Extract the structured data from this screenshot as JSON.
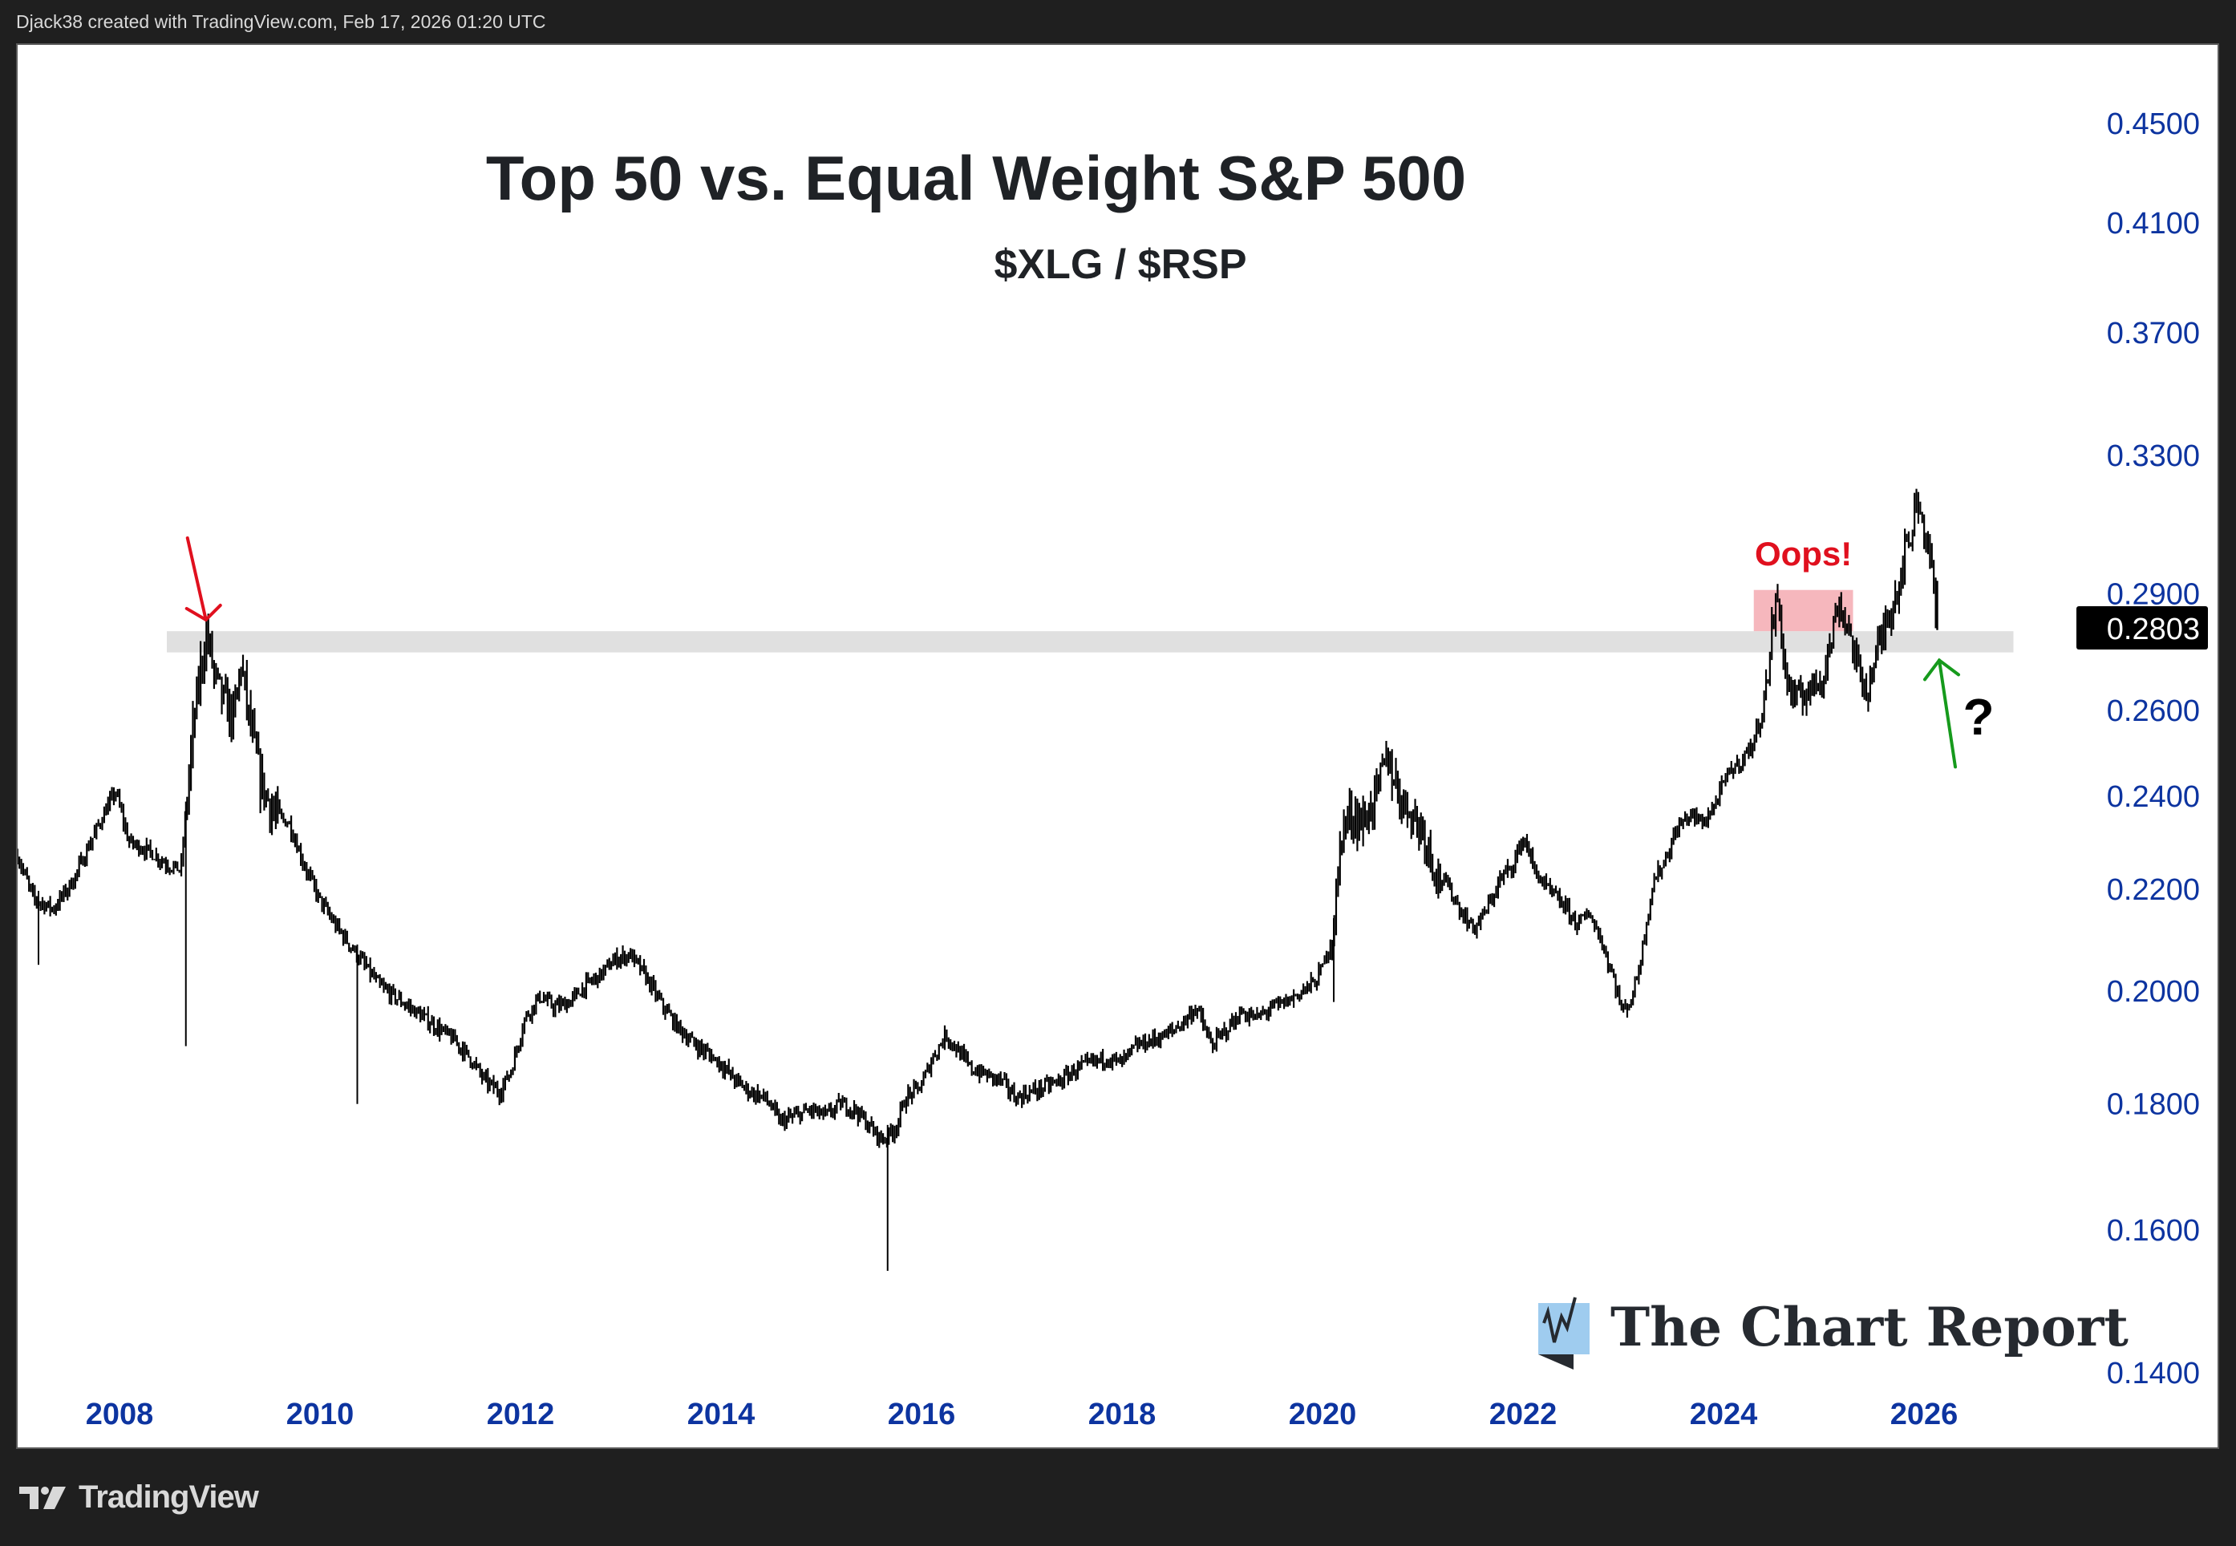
{
  "header": {
    "attribution": "Djack38 created with TradingView.com, Feb 17, 2026 01:20 UTC"
  },
  "footer": {
    "logo_icon": "tradingview-logo-icon",
    "logo_text": "TradingView"
  },
  "watermark": {
    "icon": "chart-report-logo-icon",
    "text": "The Chart Report"
  },
  "colors": {
    "axis_text": "#0d34a0",
    "price_bars": "#000000",
    "support_band": "#e0e0e0",
    "oops_box": "#f6b7bd",
    "oops_text": "#e0101e",
    "red_arrow": "#e0101e",
    "green_arrow": "#169a1c",
    "last_price_bg": "#000000",
    "last_price_text": "#ffffff"
  },
  "chart_data": {
    "type": "bar",
    "style": "ohlc-bars",
    "title": "Top 50 vs. Equal Weight S&P 500",
    "subtitle": "$XLG / $RSP",
    "xlabel": "",
    "ylabel": "",
    "yscale": "log",
    "ylim": [
      0.137,
      0.48
    ],
    "xlim": [
      2006.99,
      2027.0
    ],
    "grid": false,
    "legend": "none",
    "y_ticks": [
      "0.4500",
      "0.4100",
      "0.3700",
      "0.3300",
      "0.2900",
      "0.2600",
      "0.2400",
      "0.2200",
      "0.2000",
      "0.1800",
      "0.1600",
      "0.1400"
    ],
    "y_tick_values": [
      0.45,
      0.41,
      0.37,
      0.33,
      0.29,
      0.26,
      0.24,
      0.22,
      0.2,
      0.18,
      0.16,
      0.14
    ],
    "x_ticks": [
      "2008",
      "2010",
      "2012",
      "2014",
      "2016",
      "2018",
      "2020",
      "2022",
      "2024",
      "2026"
    ],
    "x_tick_values": [
      2008,
      2010,
      2012,
      2014,
      2016,
      2018,
      2020,
      2022,
      2024,
      2026
    ],
    "last_price": "0.2803",
    "last_price_value": 0.2803,
    "series": [
      {
        "name": "XLG/RSP",
        "points": [
          [
            2006.99,
            0.227
          ],
          [
            2007.15,
            0.218
          ],
          [
            2007.35,
            0.216
          ],
          [
            2007.55,
            0.222
          ],
          [
            2007.7,
            0.229
          ],
          [
            2007.85,
            0.236
          ],
          [
            2007.97,
            0.241
          ],
          [
            2008.1,
            0.23
          ],
          [
            2008.3,
            0.228
          ],
          [
            2008.5,
            0.225
          ],
          [
            2008.62,
            0.224
          ],
          [
            2008.74,
            0.255
          ],
          [
            2008.82,
            0.271
          ],
          [
            2008.88,
            0.2795
          ],
          [
            2008.96,
            0.268
          ],
          [
            2009.05,
            0.262
          ],
          [
            2009.15,
            0.258
          ],
          [
            2009.22,
            0.272
          ],
          [
            2009.3,
            0.258
          ],
          [
            2009.42,
            0.243
          ],
          [
            2009.55,
            0.236
          ],
          [
            2009.7,
            0.234
          ],
          [
            2009.85,
            0.225
          ],
          [
            2010.0,
            0.218
          ],
          [
            2010.15,
            0.213
          ],
          [
            2010.3,
            0.209
          ],
          [
            2010.45,
            0.205
          ],
          [
            2010.6,
            0.201
          ],
          [
            2010.75,
            0.199
          ],
          [
            2010.9,
            0.197
          ],
          [
            2011.05,
            0.195
          ],
          [
            2011.2,
            0.193
          ],
          [
            2011.35,
            0.191
          ],
          [
            2011.5,
            0.188
          ],
          [
            2011.65,
            0.184
          ],
          [
            2011.8,
            0.182
          ],
          [
            2011.92,
            0.186
          ],
          [
            2012.05,
            0.195
          ],
          [
            2012.2,
            0.199
          ],
          [
            2012.35,
            0.197
          ],
          [
            2012.5,
            0.198
          ],
          [
            2012.65,
            0.201
          ],
          [
            2012.8,
            0.203
          ],
          [
            2012.95,
            0.206
          ],
          [
            2013.1,
            0.207
          ],
          [
            2013.25,
            0.203
          ],
          [
            2013.4,
            0.198
          ],
          [
            2013.55,
            0.194
          ],
          [
            2013.7,
            0.191
          ],
          [
            2013.85,
            0.189
          ],
          [
            2014.0,
            0.187
          ],
          [
            2014.15,
            0.184
          ],
          [
            2014.3,
            0.182
          ],
          [
            2014.45,
            0.181
          ],
          [
            2014.6,
            0.177
          ],
          [
            2014.75,
            0.178
          ],
          [
            2014.9,
            0.179
          ],
          [
            2015.05,
            0.178
          ],
          [
            2015.2,
            0.18
          ],
          [
            2015.35,
            0.179
          ],
          [
            2015.5,
            0.176
          ],
          [
            2015.62,
            0.174
          ],
          [
            2015.75,
            0.176
          ],
          [
            2015.85,
            0.181
          ],
          [
            2016.0,
            0.183
          ],
          [
            2016.12,
            0.188
          ],
          [
            2016.25,
            0.192
          ],
          [
            2016.38,
            0.189
          ],
          [
            2016.5,
            0.186
          ],
          [
            2016.65,
            0.185
          ],
          [
            2016.8,
            0.184
          ],
          [
            2016.95,
            0.181
          ],
          [
            2017.1,
            0.182
          ],
          [
            2017.25,
            0.183
          ],
          [
            2017.4,
            0.184
          ],
          [
            2017.55,
            0.186
          ],
          [
            2017.7,
            0.187
          ],
          [
            2017.85,
            0.188
          ],
          [
            2018.0,
            0.187
          ],
          [
            2018.15,
            0.19
          ],
          [
            2018.3,
            0.191
          ],
          [
            2018.45,
            0.192
          ],
          [
            2018.6,
            0.194
          ],
          [
            2018.75,
            0.197
          ],
          [
            2018.9,
            0.19
          ],
          [
            2019.05,
            0.193
          ],
          [
            2019.2,
            0.196
          ],
          [
            2019.35,
            0.195
          ],
          [
            2019.5,
            0.197
          ],
          [
            2019.65,
            0.198
          ],
          [
            2019.8,
            0.2
          ],
          [
            2019.95,
            0.202
          ],
          [
            2020.05,
            0.207
          ],
          [
            2020.12,
            0.212
          ],
          [
            2020.2,
            0.233
          ],
          [
            2020.3,
            0.236
          ],
          [
            2020.42,
            0.234
          ],
          [
            2020.55,
            0.241
          ],
          [
            2020.65,
            0.249
          ],
          [
            2020.78,
            0.24
          ],
          [
            2020.9,
            0.236
          ],
          [
            2021.02,
            0.232
          ],
          [
            2021.15,
            0.223
          ],
          [
            2021.28,
            0.22
          ],
          [
            2021.4,
            0.215
          ],
          [
            2021.52,
            0.212
          ],
          [
            2021.65,
            0.216
          ],
          [
            2021.78,
            0.222
          ],
          [
            2021.9,
            0.225
          ],
          [
            2022.02,
            0.231
          ],
          [
            2022.12,
            0.224
          ],
          [
            2022.25,
            0.22
          ],
          [
            2022.4,
            0.217
          ],
          [
            2022.55,
            0.213
          ],
          [
            2022.68,
            0.215
          ],
          [
            2022.8,
            0.209
          ],
          [
            2022.92,
            0.202
          ],
          [
            2023.0,
            0.196
          ],
          [
            2023.1,
            0.199
          ],
          [
            2023.18,
            0.206
          ],
          [
            2023.3,
            0.221
          ],
          [
            2023.42,
            0.226
          ],
          [
            2023.55,
            0.233
          ],
          [
            2023.68,
            0.236
          ],
          [
            2023.8,
            0.234
          ],
          [
            2023.92,
            0.238
          ],
          [
            2024.05,
            0.245
          ],
          [
            2024.18,
            0.248
          ],
          [
            2024.3,
            0.252
          ],
          [
            2024.42,
            0.262
          ],
          [
            2024.5,
            0.283
          ],
          [
            2024.55,
            0.289
          ],
          [
            2024.63,
            0.268
          ],
          [
            2024.72,
            0.262
          ],
          [
            2024.85,
            0.265
          ],
          [
            2024.98,
            0.268
          ],
          [
            2025.08,
            0.277
          ],
          [
            2025.15,
            0.288
          ],
          [
            2025.25,
            0.281
          ],
          [
            2025.35,
            0.27
          ],
          [
            2025.45,
            0.265
          ],
          [
            2025.55,
            0.276
          ],
          [
            2025.65,
            0.284
          ],
          [
            2025.75,
            0.292
          ],
          [
            2025.82,
            0.302
          ],
          [
            2025.88,
            0.306
          ],
          [
            2025.93,
            0.318
          ],
          [
            2025.98,
            0.312
          ],
          [
            2026.04,
            0.305
          ],
          [
            2026.09,
            0.295
          ],
          [
            2026.14,
            0.2803
          ]
        ],
        "spikes_down": [
          [
            2008.67,
            0.19
          ],
          [
            2010.38,
            0.18
          ],
          [
            2015.67,
            0.154
          ],
          [
            2007.2,
            0.205
          ],
          [
            2020.12,
            0.198
          ]
        ]
      }
    ],
    "annotations": [
      {
        "type": "band",
        "label": "support-resistance-band",
        "y_range": [
          0.2745,
          0.28
        ],
        "x_range": [
          2008.48,
          2026.9
        ]
      },
      {
        "type": "box",
        "label": "oops-box",
        "text": "Oops!",
        "y_range": [
          0.28,
          0.291
        ],
        "x_range": [
          2024.31,
          2025.3
        ]
      },
      {
        "type": "arrow",
        "label": "red-arrow",
        "points_to": [
          2008.87,
          0.283
        ]
      },
      {
        "type": "arrow",
        "label": "green-arrow",
        "points_to": [
          2026.16,
          0.2725
        ]
      },
      {
        "type": "text",
        "label": "question-mark",
        "text": "?"
      }
    ]
  }
}
